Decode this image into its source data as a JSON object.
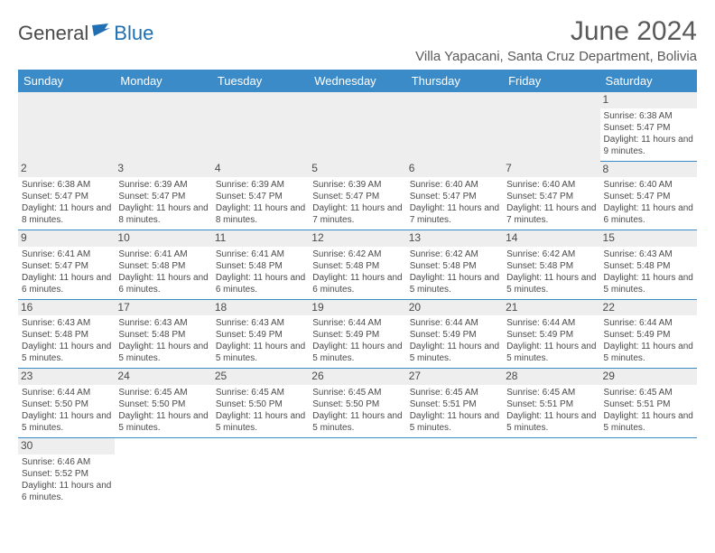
{
  "logo": {
    "general": "General",
    "blue": "Blue"
  },
  "title": "June 2024",
  "location": "Villa Yapacani, Santa Cruz Department, Bolivia",
  "colors": {
    "header_bg": "#3b8bc9",
    "header_text": "#ffffff",
    "text": "#4a4a4a",
    "daynum_bg": "#eeeeee",
    "logo_blue": "#1f6fb2"
  },
  "weekdays": [
    "Sunday",
    "Monday",
    "Tuesday",
    "Wednesday",
    "Thursday",
    "Friday",
    "Saturday"
  ],
  "weeks": [
    [
      null,
      null,
      null,
      null,
      null,
      null,
      {
        "n": "1",
        "sr": "Sunrise: 6:38 AM",
        "ss": "Sunset: 5:47 PM",
        "dl": "Daylight: 11 hours and 9 minutes."
      }
    ],
    [
      {
        "n": "2",
        "sr": "Sunrise: 6:38 AM",
        "ss": "Sunset: 5:47 PM",
        "dl": "Daylight: 11 hours and 8 minutes."
      },
      {
        "n": "3",
        "sr": "Sunrise: 6:39 AM",
        "ss": "Sunset: 5:47 PM",
        "dl": "Daylight: 11 hours and 8 minutes."
      },
      {
        "n": "4",
        "sr": "Sunrise: 6:39 AM",
        "ss": "Sunset: 5:47 PM",
        "dl": "Daylight: 11 hours and 8 minutes."
      },
      {
        "n": "5",
        "sr": "Sunrise: 6:39 AM",
        "ss": "Sunset: 5:47 PM",
        "dl": "Daylight: 11 hours and 7 minutes."
      },
      {
        "n": "6",
        "sr": "Sunrise: 6:40 AM",
        "ss": "Sunset: 5:47 PM",
        "dl": "Daylight: 11 hours and 7 minutes."
      },
      {
        "n": "7",
        "sr": "Sunrise: 6:40 AM",
        "ss": "Sunset: 5:47 PM",
        "dl": "Daylight: 11 hours and 7 minutes."
      },
      {
        "n": "8",
        "sr": "Sunrise: 6:40 AM",
        "ss": "Sunset: 5:47 PM",
        "dl": "Daylight: 11 hours and 6 minutes."
      }
    ],
    [
      {
        "n": "9",
        "sr": "Sunrise: 6:41 AM",
        "ss": "Sunset: 5:47 PM",
        "dl": "Daylight: 11 hours and 6 minutes."
      },
      {
        "n": "10",
        "sr": "Sunrise: 6:41 AM",
        "ss": "Sunset: 5:48 PM",
        "dl": "Daylight: 11 hours and 6 minutes."
      },
      {
        "n": "11",
        "sr": "Sunrise: 6:41 AM",
        "ss": "Sunset: 5:48 PM",
        "dl": "Daylight: 11 hours and 6 minutes."
      },
      {
        "n": "12",
        "sr": "Sunrise: 6:42 AM",
        "ss": "Sunset: 5:48 PM",
        "dl": "Daylight: 11 hours and 6 minutes."
      },
      {
        "n": "13",
        "sr": "Sunrise: 6:42 AM",
        "ss": "Sunset: 5:48 PM",
        "dl": "Daylight: 11 hours and 5 minutes."
      },
      {
        "n": "14",
        "sr": "Sunrise: 6:42 AM",
        "ss": "Sunset: 5:48 PM",
        "dl": "Daylight: 11 hours and 5 minutes."
      },
      {
        "n": "15",
        "sr": "Sunrise: 6:43 AM",
        "ss": "Sunset: 5:48 PM",
        "dl": "Daylight: 11 hours and 5 minutes."
      }
    ],
    [
      {
        "n": "16",
        "sr": "Sunrise: 6:43 AM",
        "ss": "Sunset: 5:48 PM",
        "dl": "Daylight: 11 hours and 5 minutes."
      },
      {
        "n": "17",
        "sr": "Sunrise: 6:43 AM",
        "ss": "Sunset: 5:48 PM",
        "dl": "Daylight: 11 hours and 5 minutes."
      },
      {
        "n": "18",
        "sr": "Sunrise: 6:43 AM",
        "ss": "Sunset: 5:49 PM",
        "dl": "Daylight: 11 hours and 5 minutes."
      },
      {
        "n": "19",
        "sr": "Sunrise: 6:44 AM",
        "ss": "Sunset: 5:49 PM",
        "dl": "Daylight: 11 hours and 5 minutes."
      },
      {
        "n": "20",
        "sr": "Sunrise: 6:44 AM",
        "ss": "Sunset: 5:49 PM",
        "dl": "Daylight: 11 hours and 5 minutes."
      },
      {
        "n": "21",
        "sr": "Sunrise: 6:44 AM",
        "ss": "Sunset: 5:49 PM",
        "dl": "Daylight: 11 hours and 5 minutes."
      },
      {
        "n": "22",
        "sr": "Sunrise: 6:44 AM",
        "ss": "Sunset: 5:49 PM",
        "dl": "Daylight: 11 hours and 5 minutes."
      }
    ],
    [
      {
        "n": "23",
        "sr": "Sunrise: 6:44 AM",
        "ss": "Sunset: 5:50 PM",
        "dl": "Daylight: 11 hours and 5 minutes."
      },
      {
        "n": "24",
        "sr": "Sunrise: 6:45 AM",
        "ss": "Sunset: 5:50 PM",
        "dl": "Daylight: 11 hours and 5 minutes."
      },
      {
        "n": "25",
        "sr": "Sunrise: 6:45 AM",
        "ss": "Sunset: 5:50 PM",
        "dl": "Daylight: 11 hours and 5 minutes."
      },
      {
        "n": "26",
        "sr": "Sunrise: 6:45 AM",
        "ss": "Sunset: 5:50 PM",
        "dl": "Daylight: 11 hours and 5 minutes."
      },
      {
        "n": "27",
        "sr": "Sunrise: 6:45 AM",
        "ss": "Sunset: 5:51 PM",
        "dl": "Daylight: 11 hours and 5 minutes."
      },
      {
        "n": "28",
        "sr": "Sunrise: 6:45 AM",
        "ss": "Sunset: 5:51 PM",
        "dl": "Daylight: 11 hours and 5 minutes."
      },
      {
        "n": "29",
        "sr": "Sunrise: 6:45 AM",
        "ss": "Sunset: 5:51 PM",
        "dl": "Daylight: 11 hours and 5 minutes."
      }
    ],
    [
      {
        "n": "30",
        "sr": "Sunrise: 6:46 AM",
        "ss": "Sunset: 5:52 PM",
        "dl": "Daylight: 11 hours and 6 minutes."
      },
      null,
      null,
      null,
      null,
      null,
      null
    ]
  ]
}
